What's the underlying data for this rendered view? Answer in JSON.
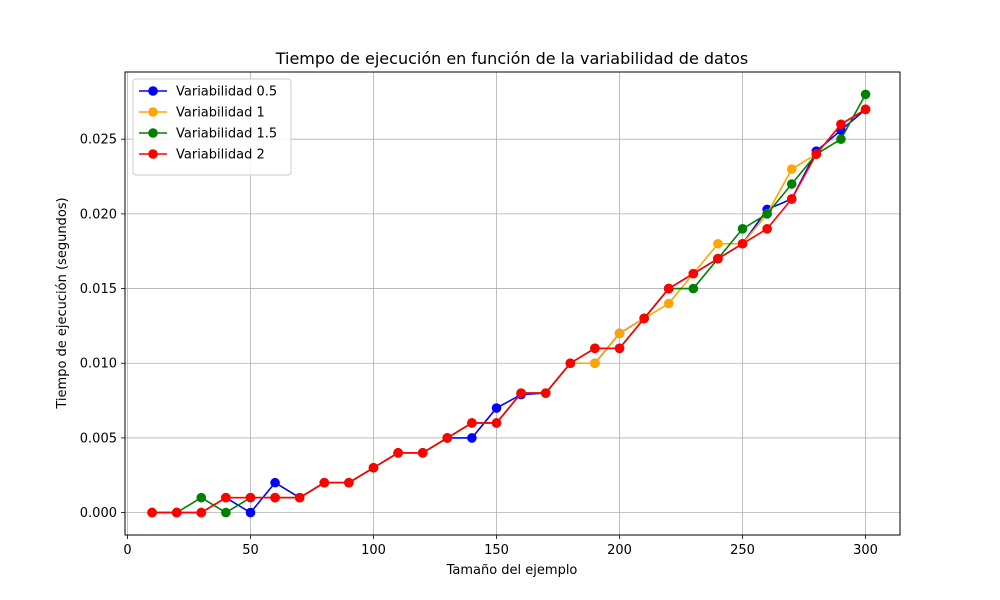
{
  "chart_data": {
    "type": "line",
    "title": "Tiempo de ejecución en función de la variabilidad de datos",
    "xlabel": "Tamaño del ejemplo",
    "ylabel": "Tiempo de ejecución (segundos)",
    "xlim": [
      -1,
      314
    ],
    "ylim": [
      -0.0015,
      0.0295
    ],
    "xticks": [
      0,
      50,
      100,
      150,
      200,
      250,
      300
    ],
    "yticks": [
      0.0,
      0.005,
      0.01,
      0.015,
      0.02,
      0.025
    ],
    "xtick_labels": [
      "0",
      "50",
      "100",
      "150",
      "200",
      "250",
      "300"
    ],
    "ytick_labels": [
      "0.000",
      "0.005",
      "0.010",
      "0.015",
      "0.020",
      "0.025"
    ],
    "grid": true,
    "legend_position": "upper-left",
    "x": [
      10,
      20,
      30,
      40,
      50,
      60,
      70,
      80,
      90,
      100,
      110,
      120,
      130,
      140,
      150,
      160,
      170,
      180,
      190,
      200,
      210,
      220,
      230,
      240,
      250,
      260,
      270,
      280,
      290,
      300
    ],
    "series": [
      {
        "name": "Variabilidad 0.5",
        "color": "#0000ff",
        "values": [
          0,
          0,
          0,
          0.001,
          0,
          0.002,
          0.001,
          0.002,
          0.002,
          0.003,
          0.004,
          0.004,
          0.005,
          0.005,
          0.007,
          0.0079,
          0.008,
          0.01,
          0.01,
          0.012,
          0.013,
          0.015,
          0.016,
          0.017,
          0.018,
          0.0203,
          0.021,
          0.0242,
          0.0256,
          0.027
        ]
      },
      {
        "name": "Variabilidad 1",
        "color": "#ffa500",
        "values": [
          0,
          0,
          0,
          0.001,
          0.001,
          0.001,
          0.001,
          0.002,
          0.002,
          0.003,
          0.004,
          0.004,
          0.005,
          0.006,
          0.006,
          0.008,
          0.008,
          0.01,
          0.01,
          0.012,
          0.013,
          0.014,
          0.016,
          0.018,
          0.018,
          0.02,
          0.023,
          0.024,
          0.026,
          0.027
        ]
      },
      {
        "name": "Variabilidad 1.5",
        "color": "#008000",
        "values": [
          0,
          0,
          0.001,
          0,
          0.001,
          0.001,
          0.001,
          0.002,
          0.002,
          0.003,
          0.004,
          0.004,
          0.005,
          0.006,
          0.006,
          0.008,
          0.008,
          0.01,
          0.011,
          0.011,
          0.013,
          0.015,
          0.015,
          0.017,
          0.019,
          0.02,
          0.022,
          0.024,
          0.025,
          0.028
        ]
      },
      {
        "name": "Variabilidad 2",
        "color": "#ff0000",
        "values": [
          0,
          0,
          0,
          0.001,
          0.001,
          0.001,
          0.001,
          0.002,
          0.002,
          0.003,
          0.004,
          0.004,
          0.005,
          0.006,
          0.006,
          0.008,
          0.008,
          0.01,
          0.011,
          0.011,
          0.013,
          0.015,
          0.016,
          0.017,
          0.018,
          0.019,
          0.021,
          0.024,
          0.026,
          0.027
        ]
      }
    ]
  }
}
